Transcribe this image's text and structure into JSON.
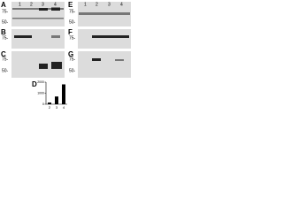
{
  "panels": [
    {
      "label": "A",
      "markers": [
        "75-",
        "50-"
      ],
      "lanes": [
        "1",
        "2",
        "3",
        "4"
      ]
    },
    {
      "label": "B",
      "markers": [
        "75-"
      ]
    },
    {
      "label": "C",
      "markers": [
        "75-",
        "50-"
      ]
    },
    {
      "label": "E",
      "markers": [
        "75-",
        "50-"
      ],
      "lanes": [
        "1",
        "2",
        "3",
        "4"
      ]
    },
    {
      "label": "F",
      "markers": [
        "75-"
      ]
    },
    {
      "label": "G",
      "markers": [
        "75-",
        "50-"
      ]
    }
  ],
  "chart_data": {
    "type": "bar",
    "label": "D",
    "categories": [
      "2",
      "3",
      "4"
    ],
    "values": [
      150,
      700,
      1800
    ],
    "color": "#000000",
    "ylim": [
      0,
      2000
    ],
    "yticks": [
      0,
      1000,
      2000
    ]
  }
}
